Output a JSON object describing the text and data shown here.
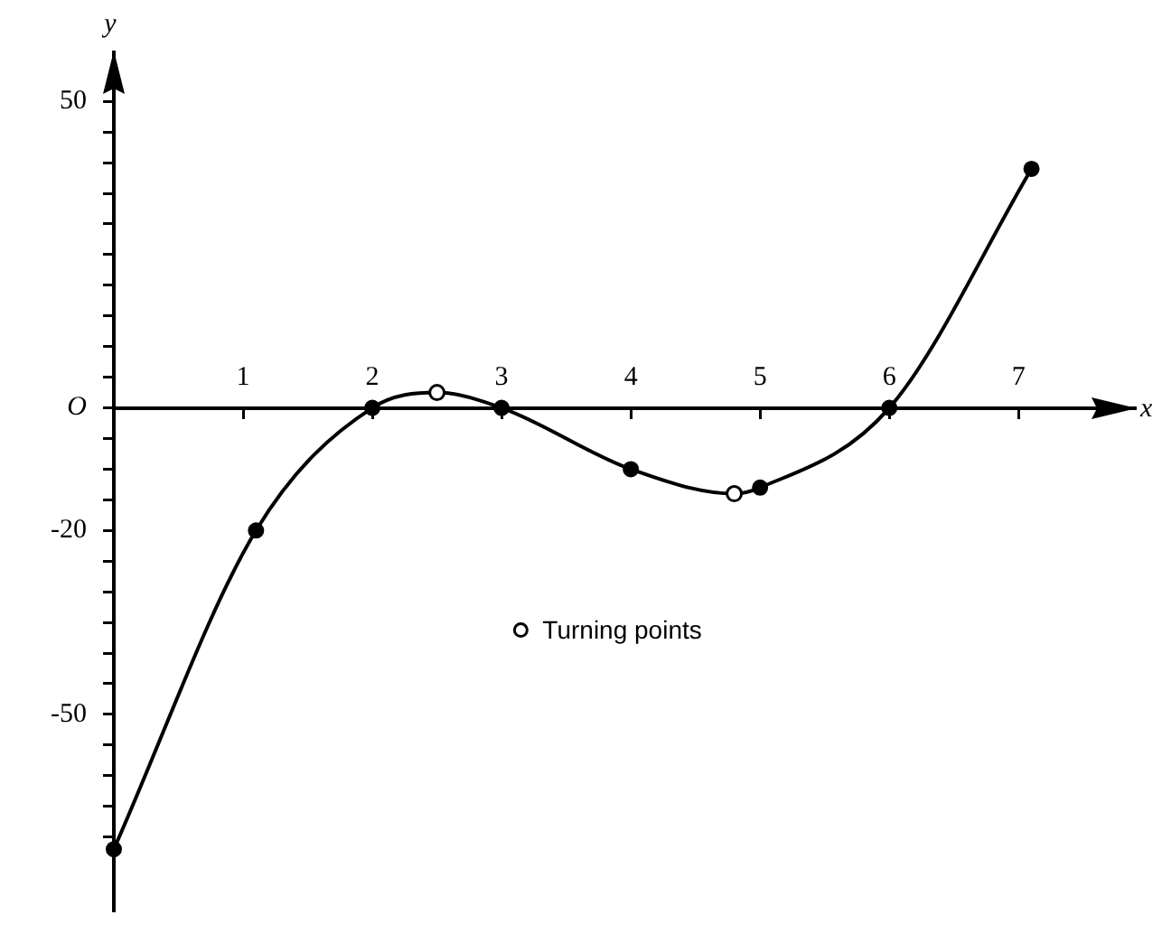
{
  "chart_data": {
    "type": "line",
    "xlabel": "x",
    "ylabel": "y",
    "x": [
      0,
      1.1,
      2,
      2.5,
      3,
      4,
      4.8,
      5,
      6,
      7.1
    ],
    "series": [
      {
        "color": "#000000",
        "values": [
          -72,
          -20,
          0,
          2.5,
          0,
          -10,
          -14,
          -13,
          0,
          39
        ]
      },
      {
        "type": "scatter",
        "name": "Turning points",
        "color": "#000000",
        "x": [
          2.5,
          4.8
        ],
        "values": [
          2.5,
          -14
        ]
      }
    ],
    "xlim": [
      0,
      7.9
    ],
    "ylim": [
      -82,
      58
    ],
    "xticks": [
      1,
      2,
      3,
      4,
      5,
      6,
      7
    ],
    "yticks": [
      {
        "value": -70,
        "label": null
      },
      {
        "value": -65,
        "label": null
      },
      {
        "value": -60,
        "label": null
      },
      {
        "value": -55,
        "label": null
      },
      -50,
      {
        "value": -45,
        "label": null
      },
      {
        "value": -40,
        "label": null
      },
      {
        "value": -35,
        "label": null
      },
      {
        "value": -30,
        "label": null
      },
      {
        "value": -25,
        "label": null
      },
      -20,
      {
        "value": -15,
        "label": null
      },
      {
        "value": -10,
        "label": null
      },
      {
        "value": -5,
        "label": null
      },
      {
        "value": 0,
        "label": "O"
      },
      {
        "value": 5,
        "label": null
      },
      {
        "value": 10,
        "label": null
      },
      {
        "value": 15,
        "label": null
      },
      {
        "value": 20,
        "label": null
      },
      {
        "value": 25,
        "label": null
      },
      {
        "value": 30,
        "label": null
      },
      {
        "value": 35,
        "label": null
      },
      {
        "value": 40,
        "label": null
      },
      {
        "value": 45,
        "label": null
      },
      50
    ],
    "legend": "center",
    "marker": "circle"
  }
}
